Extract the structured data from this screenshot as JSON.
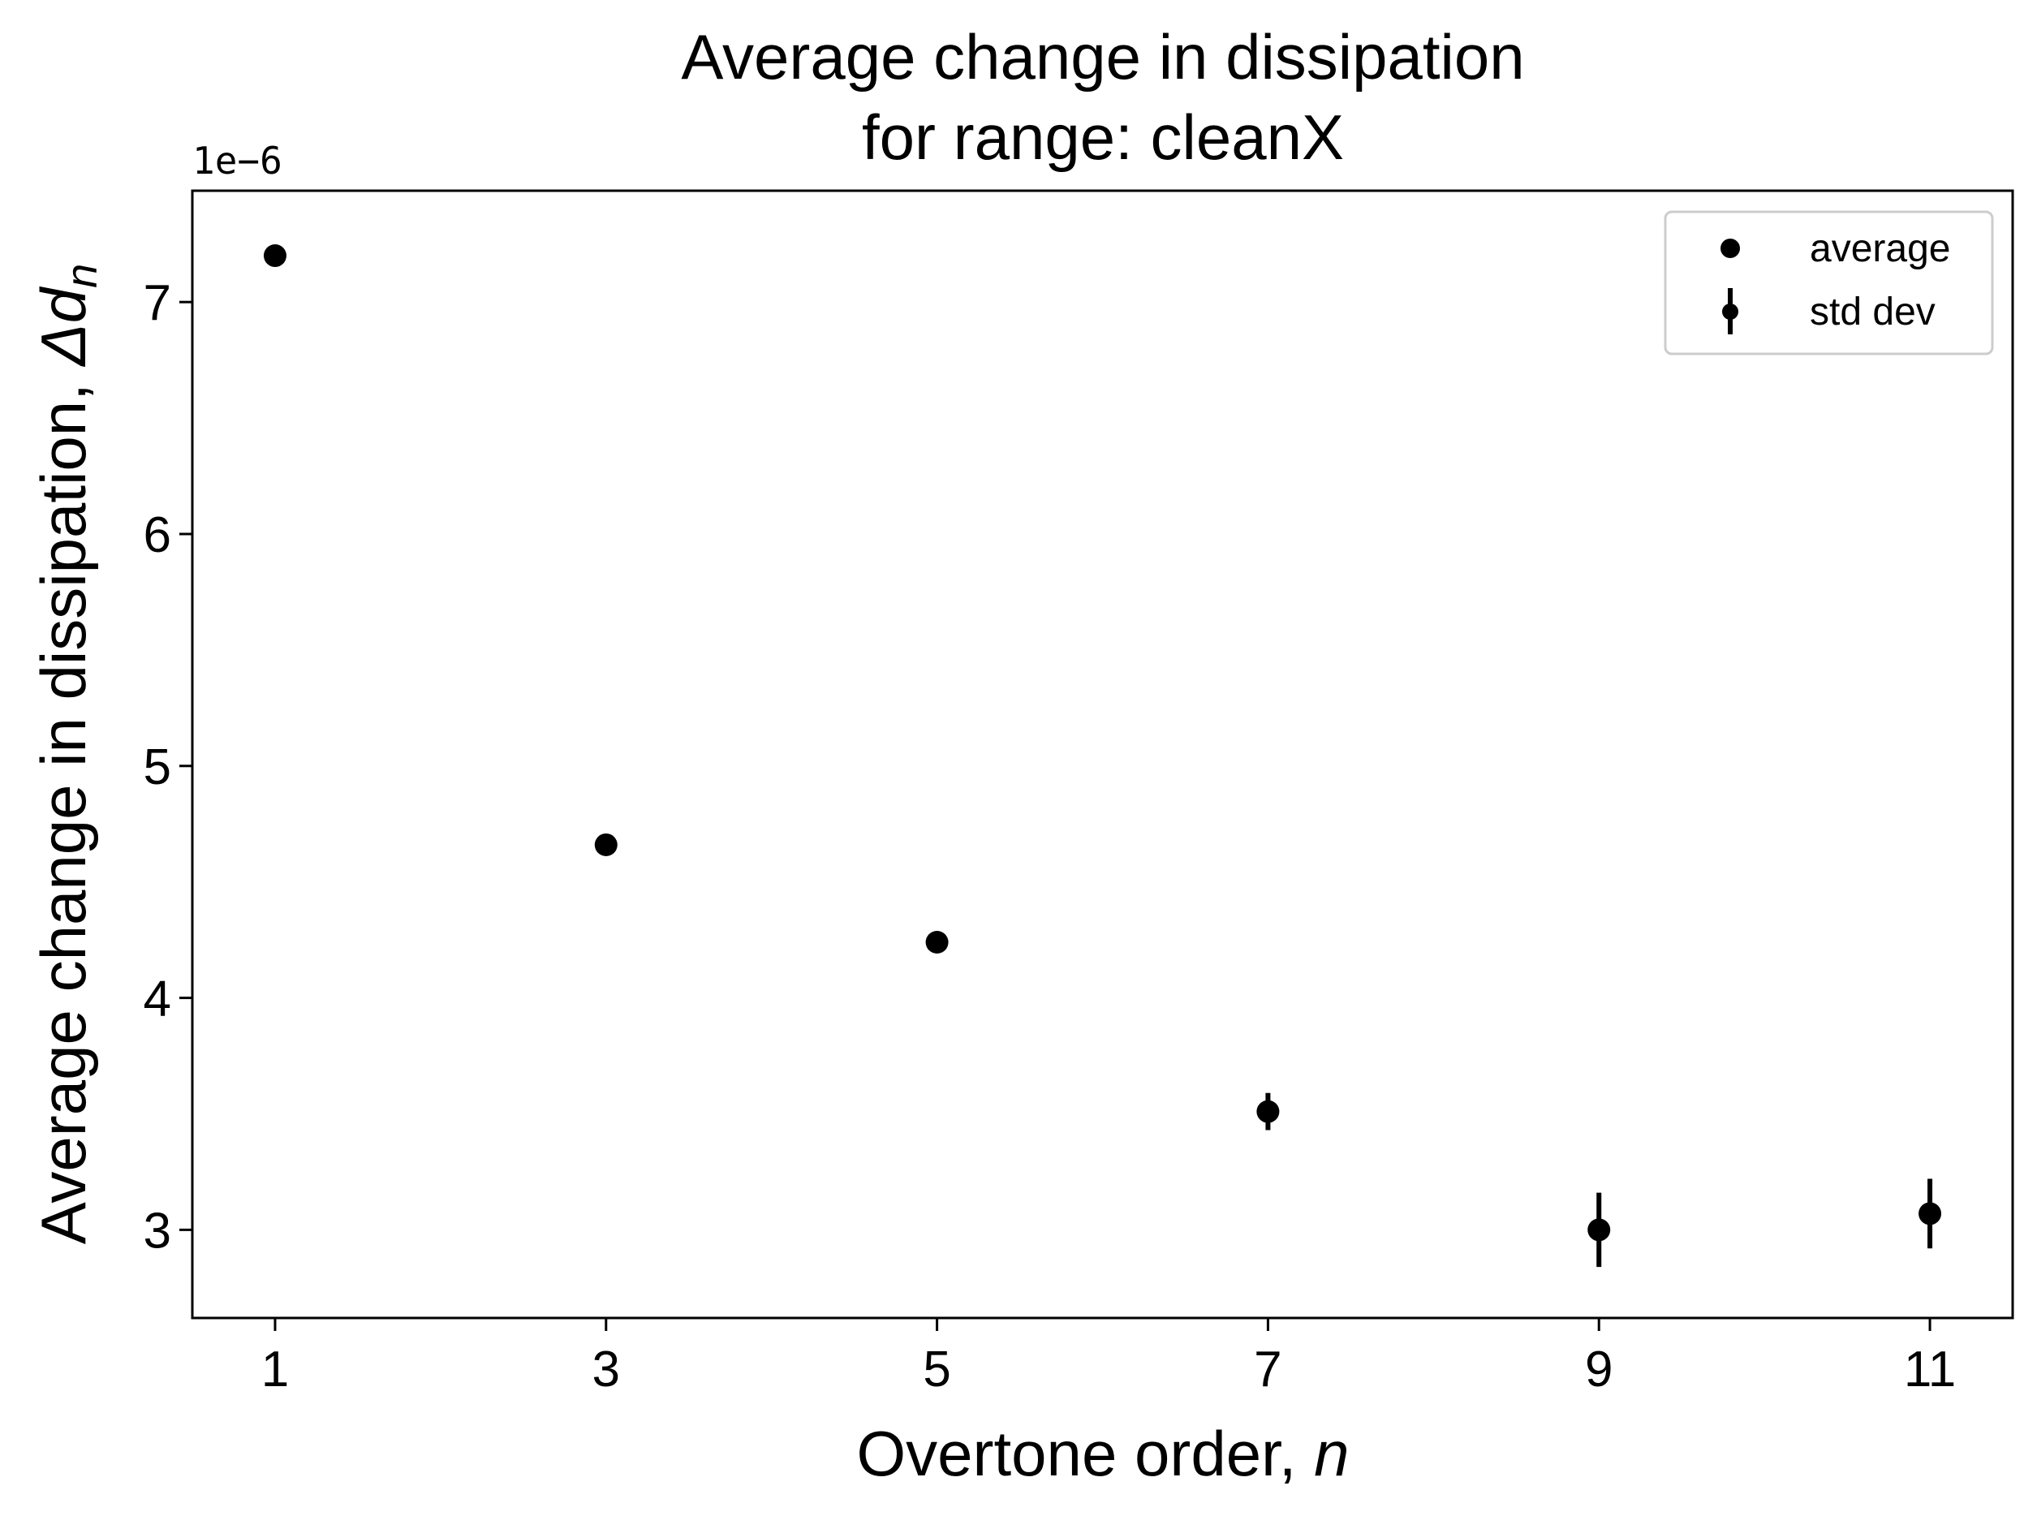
{
  "chart_data": {
    "type": "scatter",
    "title_line1": "Average change in dissipation",
    "title_line2": "for range: cleanX",
    "xlabel_text": "Overtone order, ",
    "xlabel_var": "n",
    "ylabel_text": "Average change in dissipation, ",
    "ylabel_var": "Δd",
    "ylabel_sub": "n",
    "offset_label": "1e−6",
    "x_ticks": [
      1,
      3,
      5,
      7,
      9,
      11
    ],
    "y_ticks": [
      3,
      4,
      5,
      6,
      7
    ],
    "xlim": [
      0.5,
      11.5
    ],
    "ylim": [
      2.62,
      7.48
    ],
    "grid": false,
    "legend_position": "top-right",
    "series": [
      {
        "name": "average",
        "x": [
          1,
          3,
          5,
          7,
          9,
          11
        ],
        "y": [
          7.2,
          4.66,
          4.24,
          3.51,
          3.0,
          3.07
        ],
        "color": "#000000"
      },
      {
        "name": "std dev",
        "x": [
          1,
          3,
          5,
          7,
          9,
          11
        ],
        "y": [
          7.2,
          4.66,
          4.24,
          3.51,
          3.0,
          3.07
        ],
        "err": [
          0.01,
          0.01,
          0.01,
          0.08,
          0.16,
          0.15
        ],
        "color": "#000000"
      }
    ]
  }
}
